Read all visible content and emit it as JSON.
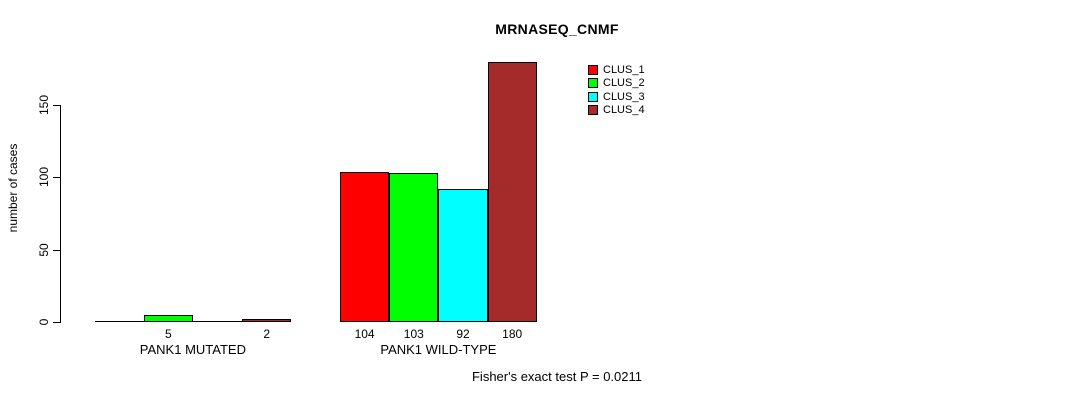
{
  "page": {
    "background": "#ffffff"
  },
  "chart_data": {
    "type": "bar",
    "title": "MRNASEQ_CNMF",
    "ylabel": "number of cases",
    "xlabel": "",
    "yticks": [
      0,
      50,
      100,
      150
    ],
    "ylim": [
      0,
      183
    ],
    "grid": false,
    "legend_position": "top-right",
    "bar_border_color": "#000000",
    "categories": [
      "PANK1 MUTATED",
      "PANK1 WILD-TYPE"
    ],
    "series": [
      {
        "name": "CLUS_1",
        "color": "#FF0000",
        "values": [
          0,
          104
        ]
      },
      {
        "name": "CLUS_2",
        "color": "#00FF00",
        "values": [
          5,
          103
        ]
      },
      {
        "name": "CLUS_3",
        "color": "#00FFFF",
        "values": [
          0,
          92
        ]
      },
      {
        "name": "CLUS_4",
        "color": "#A52A2A",
        "values": [
          2,
          180
        ]
      }
    ],
    "bar_value_labels": {
      "rule": "non-zero counts printed under each bar",
      "values": [
        [
          null,
          5,
          null,
          2
        ],
        [
          104,
          103,
          92,
          180
        ]
      ]
    },
    "footnote": "Fisher's exact test P = 0.0211"
  }
}
